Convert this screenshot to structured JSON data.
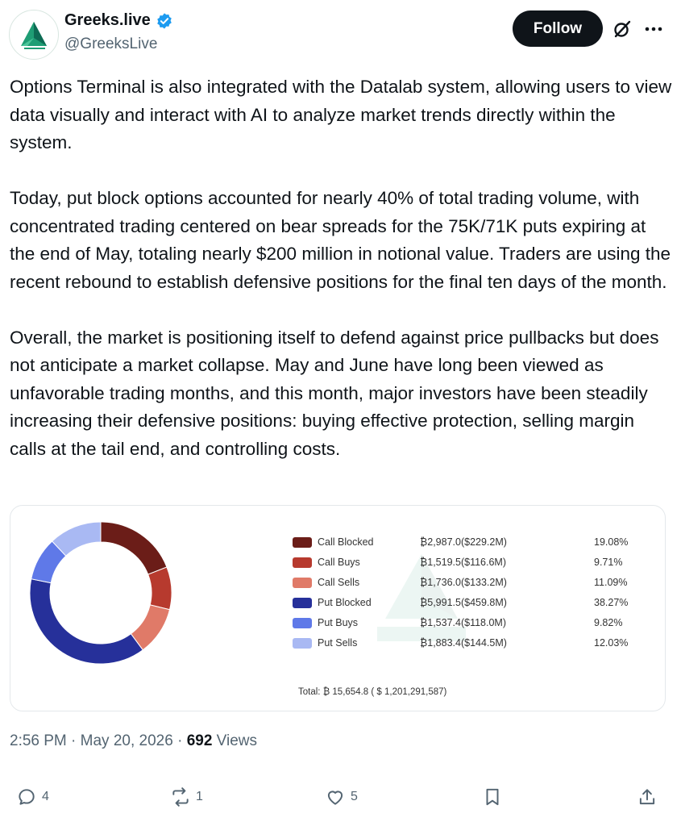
{
  "author": {
    "display_name": "Greeks.live",
    "handle": "@GreeksLive",
    "verified_icon": "verified-badge-icon",
    "avatar_colors": [
      "#1f9d74",
      "#0e6b54"
    ]
  },
  "header": {
    "follow_label": "Follow",
    "grok_icon": "grok-icon",
    "more_icon": "more-icon"
  },
  "tweet": {
    "paragraphs": [
      "Options Terminal is also integrated with the Datalab system, allowing users to view data visually and interact with AI to analyze market trends directly within the system.",
      "Today, put block options accounted for nearly 40% of total trading volume, with concentrated trading centered on bear spreads for the 75K/71K puts expiring at the end of May, totaling nearly $200 million in notional value. Traders are using the recent rebound to establish defensive positions for the final ten days of the month.",
      "Overall, the market is positioning itself to defend against price pullbacks but does not anticipate a market collapse. May and June have long been viewed as unfavorable trading months, and this month, major investors have been steadily increasing their defensive positions: buying effective protection, selling margin calls at the tail end, and controlling costs."
    ]
  },
  "chart_data": {
    "type": "pie",
    "title": "",
    "categories": [
      "Call Blocked",
      "Call Buys",
      "Call Sells",
      "Put Blocked",
      "Put Buys",
      "Put Sells"
    ],
    "value_labels": [
      "₿2,987.0($229.2M)",
      "₿1,519.5($116.6M)",
      "₿1,736.0($133.2M)",
      "₿5,991.5($459.8M)",
      "₿1,537.4($118.0M)",
      "₿1,883.4($144.5M)"
    ],
    "percent_labels": [
      "19.08%",
      "9.71%",
      "11.09%",
      "38.27%",
      "9.82%",
      "12.03%"
    ],
    "values": [
      19.08,
      9.71,
      11.09,
      38.27,
      9.82,
      12.03
    ],
    "colors": [
      "#6b1d18",
      "#b73a2e",
      "#e07a68",
      "#26309a",
      "#5f79e8",
      "#a9b9f3"
    ],
    "total_label": "Total:",
    "total_btc": "₿ 15,654.8",
    "total_usd": "( $ 1,201,291,587)",
    "legend_position": "right"
  },
  "meta": {
    "time": "2:56 PM",
    "separator": "·",
    "date": "May 20, 2026",
    "views_count": "692",
    "views_label": "Views"
  },
  "actions": {
    "replies": "4",
    "reposts": "1",
    "likes": "5"
  }
}
